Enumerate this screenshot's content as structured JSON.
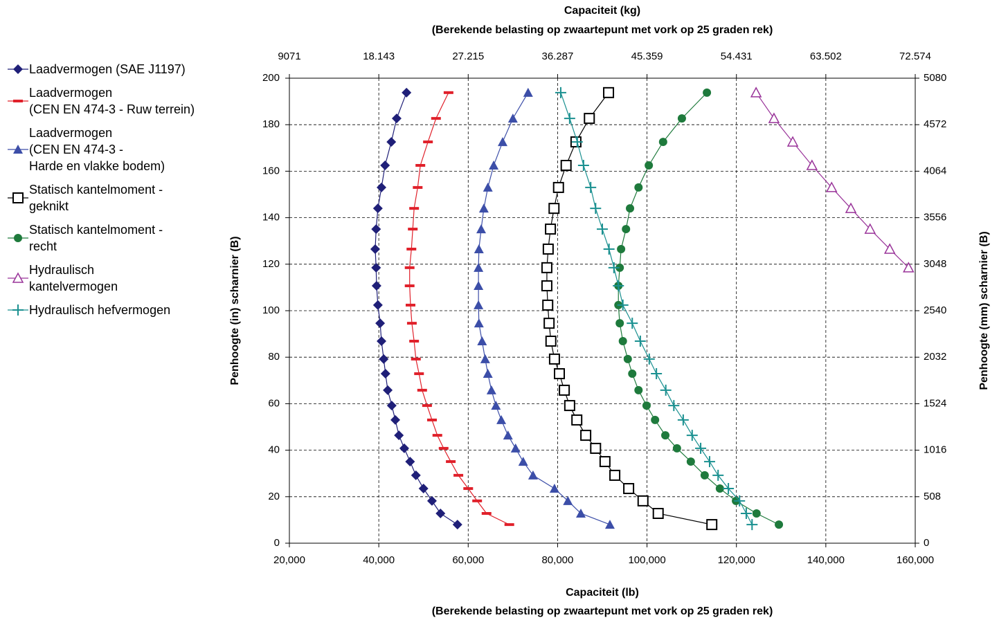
{
  "chart_data": {
    "type": "scatter",
    "x2label": "Capaciteit (kg)",
    "x2label_note": "(Berekende belasting op zwaartepunt met vork op 25 graden rek)",
    "xlabel": "Capaciteit (lb)",
    "xlabel_note": "(Berekende belasting op zwaartepunt met vork op 25 graden rek)",
    "ylabel": "Penhoogte (in) scharnier (B)",
    "y2label": "Penhoogte (mm) scharnier (B)",
    "xlim": [
      20000,
      160000
    ],
    "xticks": [
      {
        "value": 20000,
        "label": "20,000"
      },
      {
        "value": 40000,
        "label": "40,000"
      },
      {
        "value": 60000,
        "label": "60,000"
      },
      {
        "value": 80000,
        "label": "80,000"
      },
      {
        "value": 100000,
        "label": "100,000"
      },
      {
        "value": 120000,
        "label": "120,000"
      },
      {
        "value": 140000,
        "label": "140,000"
      },
      {
        "value": 160000,
        "label": "160,000"
      }
    ],
    "x2lim": [
      9071,
      72574
    ],
    "x2ticks": [
      9071,
      {
        "value": 18143,
        "label": "18.143"
      },
      {
        "value": 27215,
        "label": "27.215"
      },
      {
        "value": 36287,
        "label": "36.287"
      },
      {
        "value": 45359,
        "label": "45.359"
      },
      {
        "value": 54431,
        "label": "54.431"
      },
      {
        "value": 63502,
        "label": "63.502"
      },
      {
        "value": 72574,
        "label": "72.574"
      }
    ],
    "ylim": [
      0,
      200
    ],
    "yticks": [
      0,
      20,
      40,
      60,
      80,
      100,
      120,
      140,
      160,
      180,
      200
    ],
    "y2lim": [
      0,
      5080
    ],
    "y2ticks": [
      0,
      508,
      1016,
      1524,
      2032,
      2540,
      3048,
      3556,
      4064,
      4572,
      5080
    ],
    "grid": true,
    "y": [
      193.8,
      182.7,
      172.6,
      162.5,
      153,
      144,
      135.1,
      126.5,
      118.5,
      110.7,
      102.4,
      94.6,
      86.9,
      79.2,
      72.9,
      65.8,
      59.2,
      53,
      46.4,
      40.8,
      35.1,
      29.2,
      23.5,
      18.2,
      12.8,
      8
    ],
    "series": [
      {
        "name": "Laadvermogen (SAE J1197)",
        "color": "#1f1f78",
        "marker": "diamond",
        "values": [
          46200,
          44000,
          42800,
          41400,
          40600,
          39800,
          39400,
          39200,
          39400,
          39500,
          39800,
          40300,
          40600,
          41100,
          41500,
          42000,
          42900,
          43700,
          44500,
          45700,
          47000,
          48300,
          50000,
          51900,
          53800,
          57600
        ]
      },
      {
        "name": "Laadvermogen\n(CEN EN 474-3 - Ruw terrein)",
        "color": "#e0202a",
        "marker": "dash",
        "values": [
          55600,
          52800,
          51000,
          49300,
          48700,
          47900,
          47600,
          47300,
          46900,
          46900,
          47100,
          47400,
          47900,
          48300,
          49000,
          49700,
          50800,
          51900,
          53100,
          54500,
          56100,
          57800,
          60000,
          62000,
          64100,
          69200
        ]
      },
      {
        "name": "Laadvermogen\n(CEN EN 474-3 -\nHarde en vlakke bodem)",
        "color": "#3c4ea8",
        "marker": "triangle",
        "values": [
          73400,
          70000,
          67700,
          65700,
          64400,
          63500,
          62900,
          62400,
          62300,
          62300,
          62300,
          62400,
          63100,
          63800,
          64400,
          65200,
          66200,
          67400,
          68900,
          70600,
          72300,
          74500,
          79300,
          82300,
          85200,
          91700
        ]
      },
      {
        "name": "Statisch kantelmoment -\ngeknikt",
        "color": "#000000",
        "marker": "square",
        "values": [
          91400,
          87100,
          84100,
          81900,
          80200,
          79200,
          78400,
          77900,
          77600,
          77600,
          77800,
          78100,
          78500,
          79300,
          80400,
          81500,
          82700,
          84300,
          86300,
          88500,
          90600,
          92800,
          95900,
          99100,
          102500,
          114500
        ]
      },
      {
        "name": "Statisch kantelmoment -\nrecht",
        "color": "#1e7a3c",
        "marker": "circle",
        "values": [
          113400,
          107800,
          103600,
          100400,
          98100,
          96200,
          95300,
          94200,
          93900,
          93600,
          93600,
          93900,
          94600,
          95700,
          96700,
          98100,
          99900,
          101800,
          104100,
          106700,
          109800,
          112900,
          116300,
          119900,
          124500,
          129500
        ]
      },
      {
        "name": "Hydraulisch\nkantelvermogen",
        "color": "#993399",
        "marker": "open-triangle",
        "values": [
          124400,
          128400,
          132600,
          136900,
          141300,
          145600,
          149900,
          154300,
          158500,
          null,
          null,
          null,
          null,
          null,
          null,
          null,
          null,
          null,
          null,
          null,
          null,
          null,
          null,
          null,
          null,
          null
        ]
      },
      {
        "name": "Hydraulisch hefvermogen",
        "color": "#1a9090",
        "marker": "plus",
        "values": [
          80700,
          82700,
          84400,
          85800,
          87400,
          88500,
          90000,
          91500,
          92600,
          93600,
          94600,
          96700,
          98500,
          100500,
          102100,
          104200,
          106000,
          108100,
          110100,
          112000,
          114000,
          115900,
          118200,
          120700,
          122200,
          123500
        ]
      }
    ]
  }
}
